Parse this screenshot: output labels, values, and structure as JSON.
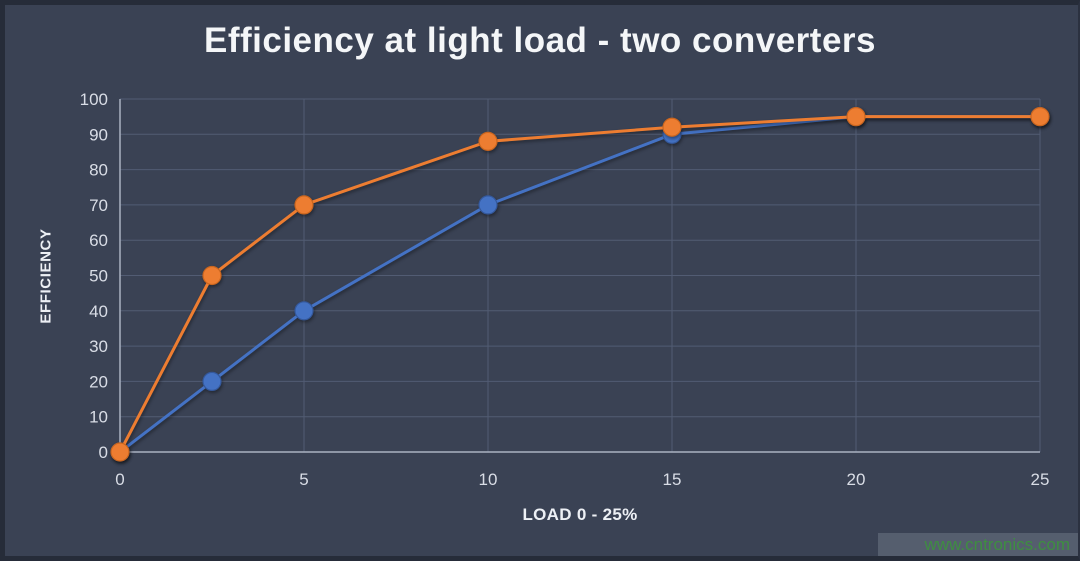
{
  "chart": {
    "title": "Efficiency at light load - two converters",
    "xlabel": "LOAD 0 - 25%",
    "ylabel": "EFFICIENCY"
  },
  "watermark": {
    "text": "www.cntronics.com"
  },
  "chart_data": {
    "type": "line",
    "title": "Efficiency at light load - two converters",
    "xlabel": "LOAD 0 - 25%",
    "ylabel": "EFFICIENCY",
    "x": [
      0,
      2.5,
      5,
      10,
      15,
      20,
      25
    ],
    "series": [
      {
        "name": "blue",
        "color": "#4472C4",
        "marker_stroke": "#34589B",
        "values": [
          0,
          20,
          40,
          70,
          90,
          95,
          95
        ]
      },
      {
        "name": "orange",
        "color": "#ED7D31",
        "marker_stroke": "#C9651E",
        "values": [
          0,
          50,
          70,
          88,
          92,
          95,
          95
        ]
      }
    ],
    "xticks": [
      0,
      5,
      10,
      15,
      20,
      25
    ],
    "yticks": [
      0,
      10,
      20,
      30,
      40,
      50,
      60,
      70,
      80,
      90,
      100
    ],
    "xlim": [
      0,
      25
    ],
    "ylim": [
      0,
      100
    ],
    "grid": true,
    "legend": "none",
    "marker": "circle",
    "colors": {
      "background": "#3A4254",
      "border": "#262C39",
      "gridline": "#525C73",
      "axis": "#A9B1C2",
      "title": "#F4F6F8",
      "tick": "#D9DDE6",
      "watermark_green": "#3E8E41"
    }
  }
}
